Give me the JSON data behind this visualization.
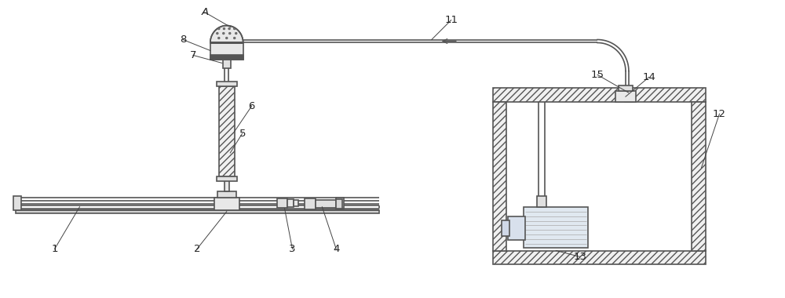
{
  "bg_color": "#ffffff",
  "line_color": "#555555",
  "figsize": [
    10.0,
    3.8
  ],
  "dpi": 100,
  "xlim": [
    0,
    10
  ],
  "ylim": [
    0,
    3.8
  ]
}
